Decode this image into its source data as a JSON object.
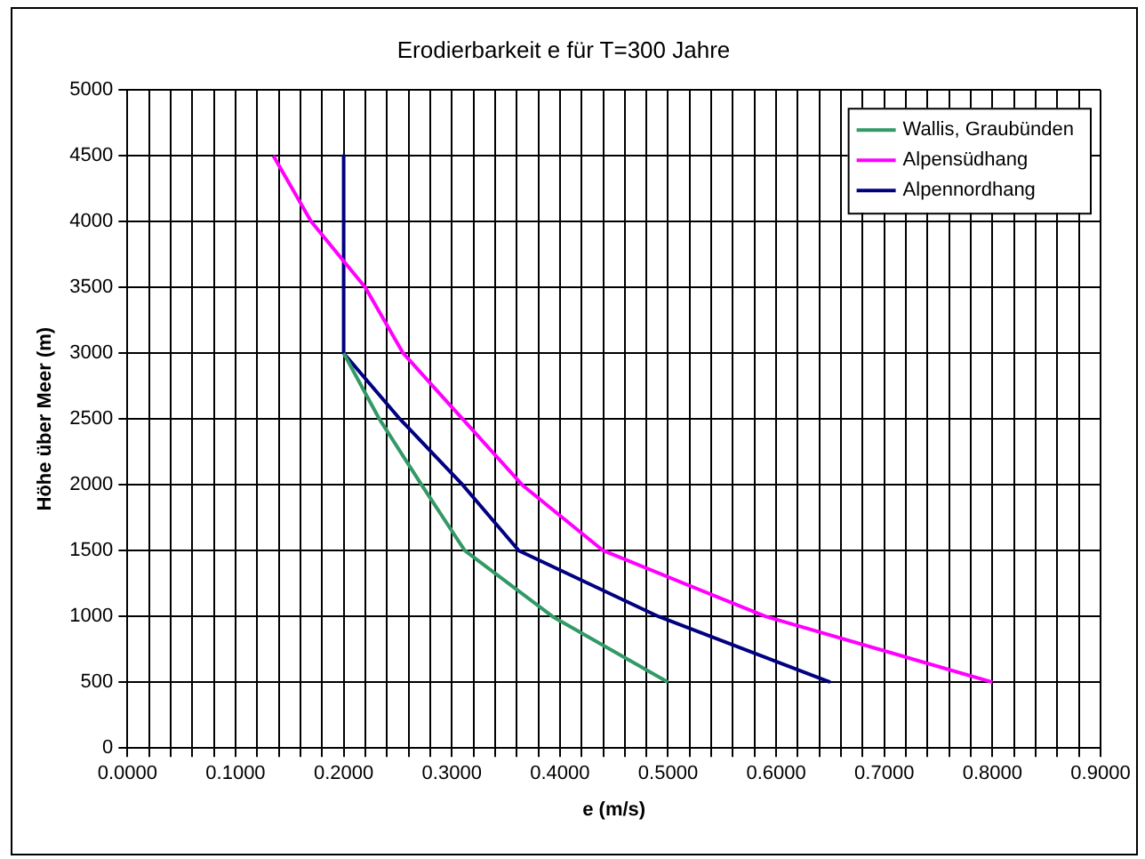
{
  "chart_data": {
    "type": "line",
    "title": "Erodierbarkeit e für T=300 Jahre",
    "xlabel": "e (m/s)",
    "ylabel": "Höhe über Meer (m)",
    "xlim": [
      0,
      0.9
    ],
    "ylim": [
      0,
      5000
    ],
    "xticks": [
      {
        "value": 0,
        "label": "0.0000"
      },
      {
        "value": 0.02,
        "label": null
      },
      {
        "value": 0.04,
        "label": null
      },
      {
        "value": 0.06,
        "label": null
      },
      {
        "value": 0.08,
        "label": null
      },
      {
        "value": 0.1,
        "label": "0.1000"
      },
      {
        "value": 0.12,
        "label": null
      },
      {
        "value": 0.14,
        "label": null
      },
      {
        "value": 0.16,
        "label": null
      },
      {
        "value": 0.18,
        "label": null
      },
      {
        "value": 0.2,
        "label": "0.2000"
      },
      {
        "value": 0.22,
        "label": null
      },
      {
        "value": 0.24,
        "label": null
      },
      {
        "value": 0.26,
        "label": null
      },
      {
        "value": 0.28,
        "label": null
      },
      {
        "value": 0.3,
        "label": "0.3000"
      },
      {
        "value": 0.32,
        "label": null
      },
      {
        "value": 0.34,
        "label": null
      },
      {
        "value": 0.36,
        "label": null
      },
      {
        "value": 0.38,
        "label": null
      },
      {
        "value": 0.4,
        "label": "0.4000"
      },
      {
        "value": 0.42,
        "label": null
      },
      {
        "value": 0.44,
        "label": null
      },
      {
        "value": 0.46,
        "label": null
      },
      {
        "value": 0.48,
        "label": null
      },
      {
        "value": 0.5,
        "label": "0.5000"
      },
      {
        "value": 0.52,
        "label": null
      },
      {
        "value": 0.54,
        "label": null
      },
      {
        "value": 0.56,
        "label": null
      },
      {
        "value": 0.58,
        "label": null
      },
      {
        "value": 0.6,
        "label": "0.6000"
      },
      {
        "value": 0.62,
        "label": null
      },
      {
        "value": 0.64,
        "label": null
      },
      {
        "value": 0.66,
        "label": null
      },
      {
        "value": 0.68,
        "label": null
      },
      {
        "value": 0.7,
        "label": "0.7000"
      },
      {
        "value": 0.72,
        "label": null
      },
      {
        "value": 0.74,
        "label": null
      },
      {
        "value": 0.76,
        "label": null
      },
      {
        "value": 0.78,
        "label": null
      },
      {
        "value": 0.8,
        "label": "0.8000"
      },
      {
        "value": 0.82,
        "label": null
      },
      {
        "value": 0.84,
        "label": null
      },
      {
        "value": 0.86,
        "label": null
      },
      {
        "value": 0.88,
        "label": null
      },
      {
        "value": 0.9,
        "label": "0.9000"
      }
    ],
    "yticks": [
      0,
      500,
      1000,
      1500,
      2000,
      2500,
      3000,
      3500,
      4000,
      4500,
      5000
    ],
    "grid": true,
    "legend": "top right",
    "marker": "none",
    "line_style": "solid",
    "series": [
      {
        "name": "Wallis, Graubünden",
        "color": "#339966",
        "x": [
          0.2,
          0.233,
          0.272,
          0.312,
          0.393,
          0.5
        ],
        "values": [
          3000,
          2500,
          2000,
          1500,
          1000,
          500
        ]
      },
      {
        "name": "Alpensüdhang",
        "color": "#ff00ff",
        "x": [
          0.135,
          0.17,
          0.22,
          0.255,
          0.31,
          0.365,
          0.44,
          0.59,
          0.8
        ],
        "values": [
          4500,
          4000,
          3500,
          3000,
          2500,
          2000,
          1500,
          1000,
          500
        ]
      },
      {
        "name": "Alpennordhang",
        "color": "#000080",
        "x": [
          0.2,
          0.2,
          0.252,
          0.31,
          0.362,
          0.491,
          0.65
        ],
        "values": [
          4500,
          3000,
          2500,
          2000,
          1500,
          1000,
          500
        ]
      }
    ]
  }
}
